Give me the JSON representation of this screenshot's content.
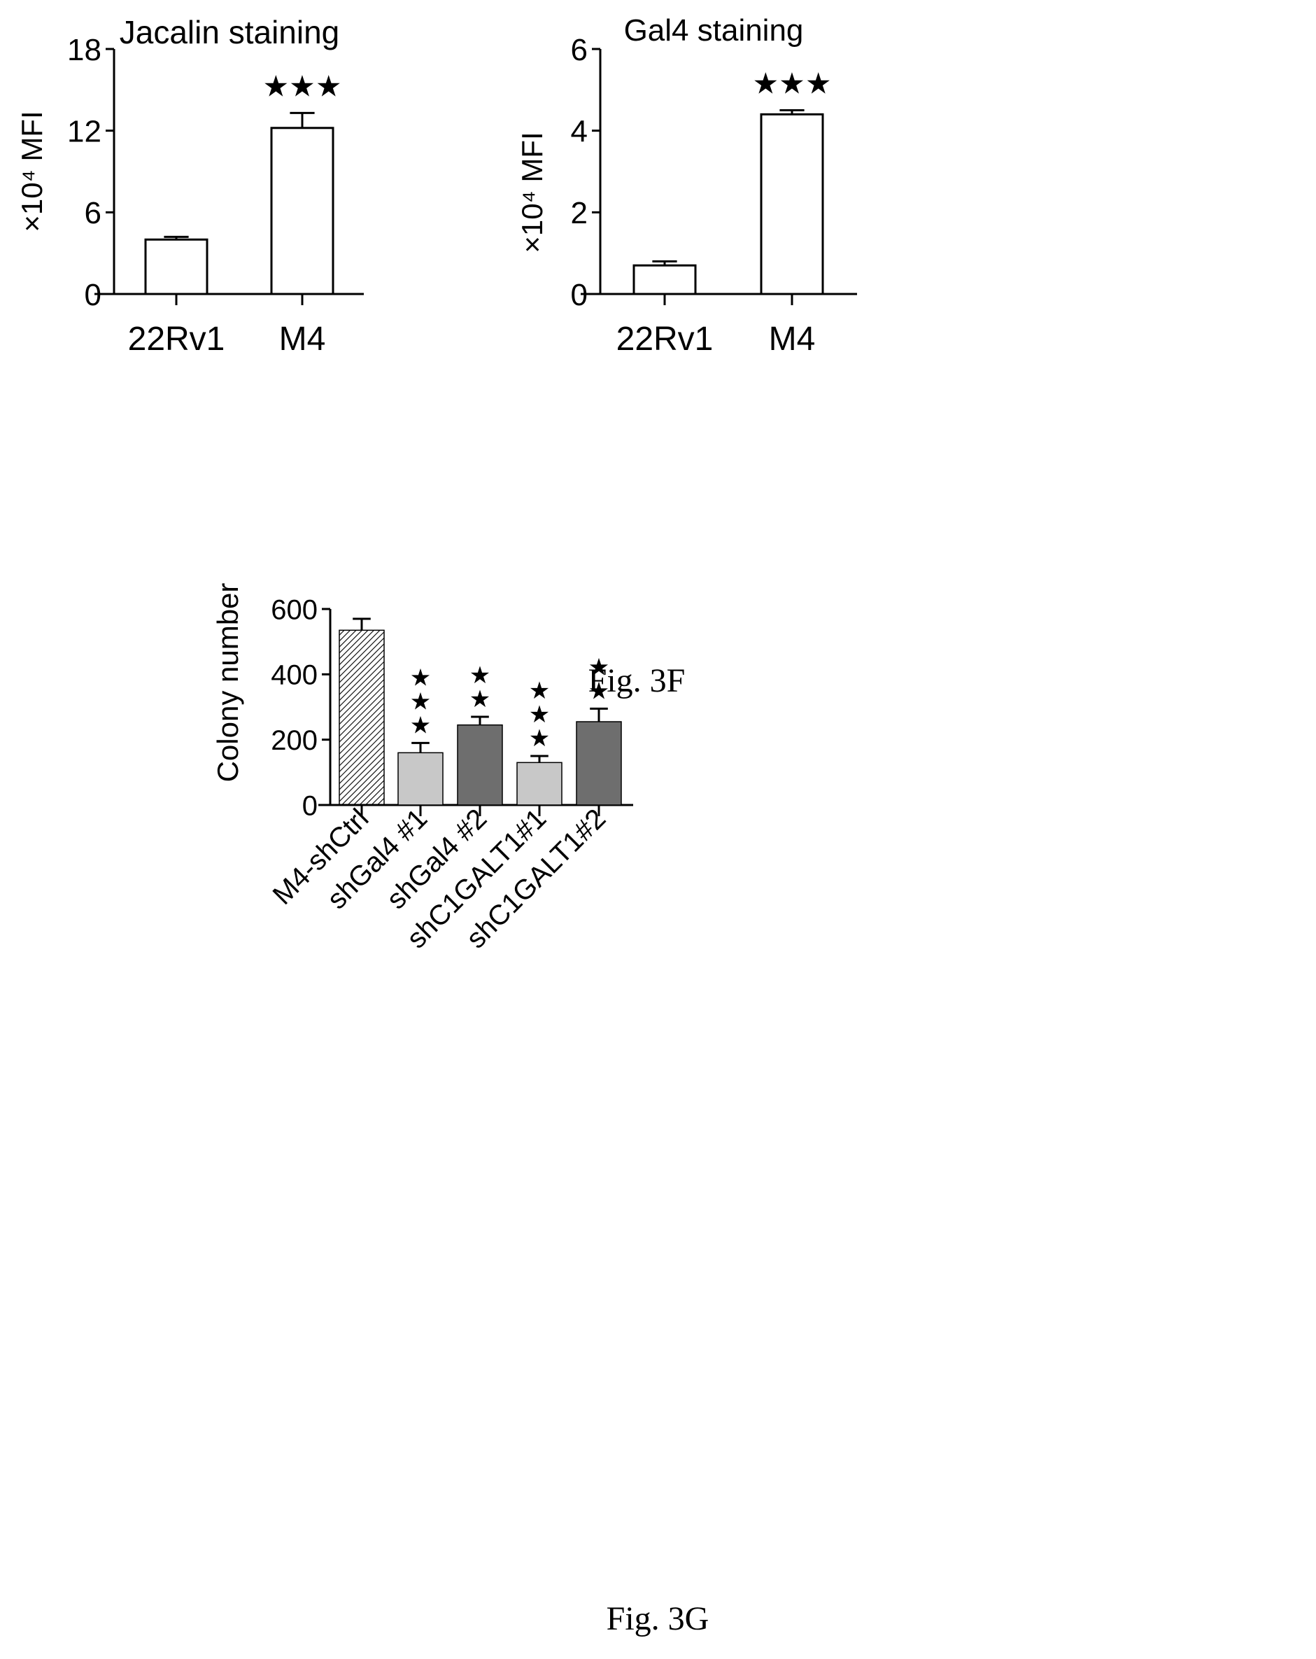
{
  "chart_data": [
    {
      "type": "bar",
      "title": "Jacalin staining",
      "xlabel": "",
      "ylabel": "×10⁴ MFI",
      "categories": [
        "22Rv1",
        "M4"
      ],
      "values": [
        4.0,
        12.2
      ],
      "error": [
        0.2,
        1.1
      ],
      "annotations": [
        "",
        "★★★"
      ],
      "ylim": [
        0,
        18
      ],
      "yticks": [
        "0",
        "6",
        "12",
        "18"
      ],
      "grid": false,
      "bar_fill": "#ffffff"
    },
    {
      "type": "bar",
      "title": "Gal4 staining",
      "xlabel": "",
      "ylabel": "×10⁴ MFI",
      "categories": [
        "22Rv1",
        "M4"
      ],
      "values": [
        0.7,
        4.4
      ],
      "error": [
        0.1,
        0.1
      ],
      "annotations": [
        "",
        "★★★"
      ],
      "ylim": [
        0,
        6
      ],
      "yticks": [
        "0",
        "2",
        "4",
        "6"
      ],
      "grid": false,
      "bar_fill": "#ffffff"
    },
    {
      "type": "bar",
      "title": "",
      "xlabel": "",
      "ylabel": "Colony number",
      "categories": [
        "M4-shCtrl",
        "shGal4 #1",
        "shGal4 #2",
        "shC1GALT1#1",
        "shC1GALT1#2"
      ],
      "values": [
        535,
        160,
        245,
        130,
        255
      ],
      "error": [
        35,
        30,
        25,
        20,
        40
      ],
      "annotations": [
        [],
        [
          "★",
          "★",
          "★"
        ],
        [
          "★",
          "★"
        ],
        [
          "★",
          "★",
          "★"
        ],
        [
          "★",
          "★"
        ]
      ],
      "ylim": [
        0,
        600
      ],
      "yticks": [
        "0",
        "200",
        "400",
        "600"
      ],
      "grid": false,
      "bar_shades": [
        "#9a9a9a",
        "#c8c8c8",
        "#6e6e6e",
        "#c8c8c8",
        "#6e6e6e"
      ]
    }
  ],
  "captions": {
    "fig3f": "Fig. 3F",
    "fig3g": "Fig. 3G"
  },
  "colors": {
    "ink": "#000000",
    "background": "#ffffff"
  }
}
